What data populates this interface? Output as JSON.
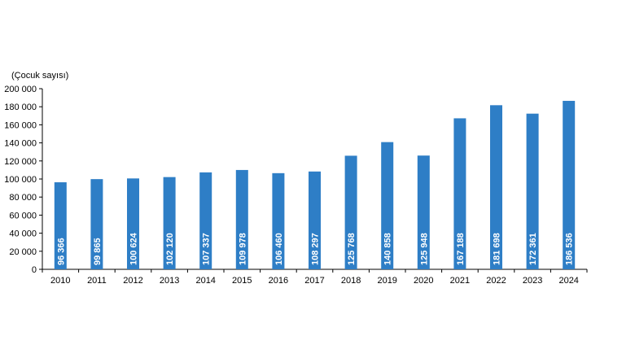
{
  "chart_data": {
    "type": "bar",
    "title": "",
    "ylabel": "(Çocuk sayısı)",
    "xlabel": "",
    "categories": [
      "2010",
      "2011",
      "2012",
      "2013",
      "2014",
      "2015",
      "2016",
      "2017",
      "2018",
      "2019",
      "2020",
      "2021",
      "2022",
      "2023",
      "2024"
    ],
    "values": [
      96366,
      99865,
      100624,
      102120,
      107337,
      109978,
      106460,
      108297,
      125768,
      140858,
      125948,
      167188,
      181698,
      172361,
      186536
    ],
    "value_labels": [
      "96 366",
      "99 865",
      "100 624",
      "102 120",
      "107 337",
      "109 978",
      "106 460",
      "108 297",
      "125 768",
      "140 858",
      "125 948",
      "167 188",
      "181 698",
      "172 361",
      "186 536"
    ],
    "ylim": [
      0,
      200000
    ],
    "yticks": [
      0,
      20000,
      40000,
      60000,
      80000,
      100000,
      120000,
      140000,
      160000,
      180000,
      200000
    ],
    "ytick_labels": [
      "0",
      "20 000",
      "40 000",
      "60 000",
      "80 000",
      "100 000",
      "120 000",
      "140 000",
      "160 000",
      "180 000",
      "200 000"
    ],
    "grid": false,
    "legend": "none",
    "bar_color": "#2E7EC6",
    "label_color": "#ffffff",
    "axis_color": "#000000"
  }
}
